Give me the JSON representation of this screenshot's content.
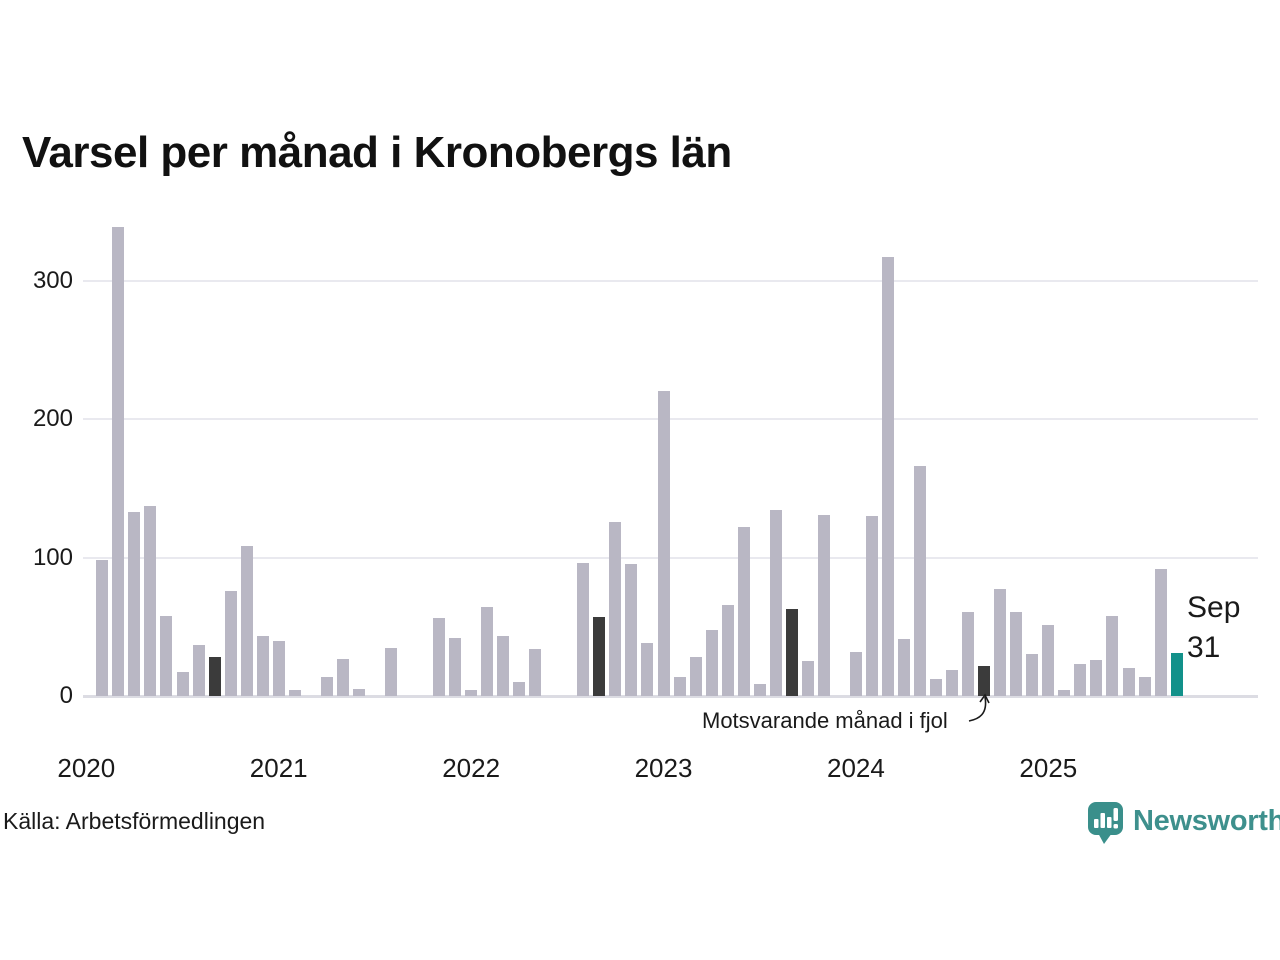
{
  "title": "Varsel per månad i Kronobergs län",
  "source": "Källa: Arbetsförmedlingen",
  "annotation": "Motsvarande månad i fjol",
  "highlight_label": {
    "month": "Sep",
    "value": "31"
  },
  "logo": {
    "text": "Newsworthy",
    "icon": "newsworthy-speech-bubble-chart-icon"
  },
  "colors": {
    "bar_default": "#b9b7c4",
    "bar_last_year_month": "#3b3b3b",
    "bar_highlight": "#12918a",
    "gridline": "#e9e9ef",
    "axis_line": "#dcdce3",
    "text": "#1a1a1a",
    "logo_teal": "#3e908d"
  },
  "chart_data": {
    "type": "bar",
    "title": "Varsel per månad i Kronobergs län",
    "x_start_month": "2020-01",
    "x_end_month": "2025-09",
    "year_labels": [
      "2020",
      "2021",
      "2022",
      "2023",
      "2024",
      "2025"
    ],
    "yticks": [
      0,
      100,
      200,
      300
    ],
    "ylim": [
      0,
      345
    ],
    "grid": true,
    "legend_position": "none",
    "values": [
      0,
      98,
      339,
      133,
      137,
      58,
      17,
      37,
      28,
      76,
      108,
      43,
      40,
      4,
      0,
      14,
      27,
      5,
      0,
      35,
      0,
      0,
      56,
      42,
      4,
      64,
      43,
      10,
      34,
      0,
      0,
      96,
      57,
      126,
      95,
      38,
      220,
      14,
      28,
      48,
      66,
      122,
      9,
      134,
      63,
      25,
      131,
      0,
      32,
      130,
      317,
      41,
      166,
      12,
      19,
      61,
      22,
      77,
      61,
      30,
      51,
      4,
      23,
      26,
      58,
      20,
      14,
      92,
      31
    ],
    "dark_indices": [
      8,
      32,
      44,
      56
    ],
    "highlight_index": 68,
    "series_note": "values are monthly from Jan 2020; dark bars = same month previous years (September); highlighted teal bar = Sep 2025 with value 31"
  }
}
